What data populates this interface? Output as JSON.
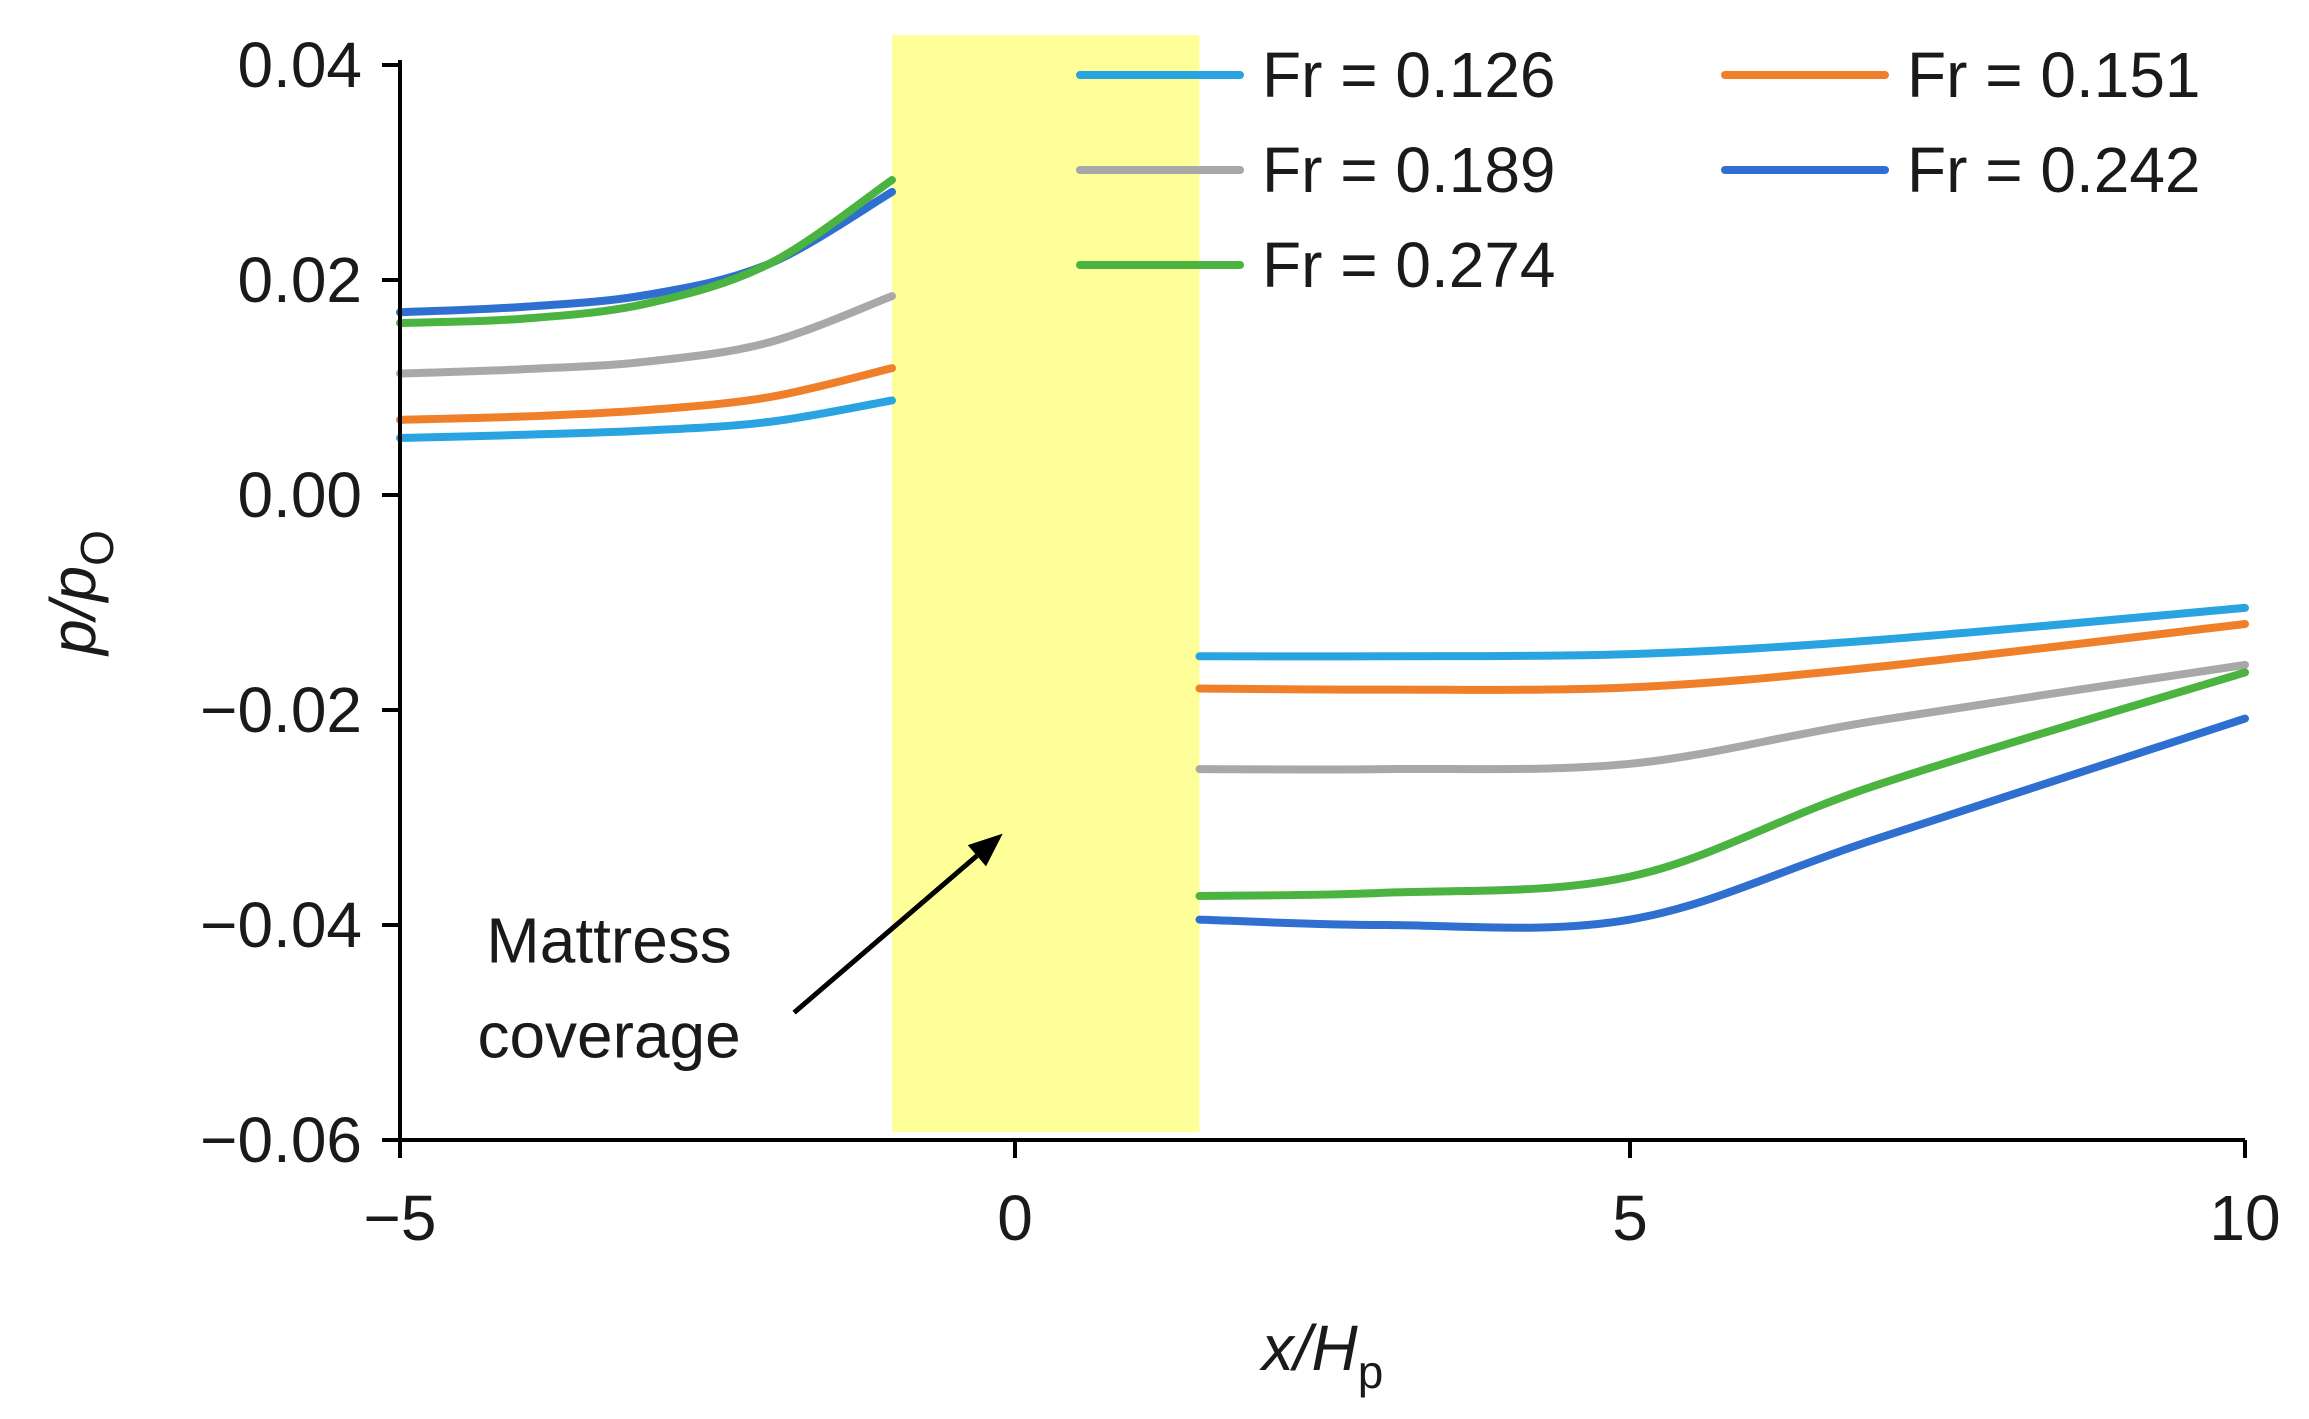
{
  "chart_data": {
    "type": "line",
    "title": "",
    "xlabel": {
      "main": "x/H",
      "sub": "p"
    },
    "ylabel": {
      "main": "p/p",
      "sub": "O"
    },
    "xlim": [
      -5,
      10
    ],
    "ylim": [
      -0.06,
      0.04
    ],
    "xticks": [
      -5,
      0,
      5,
      10
    ],
    "xtick_labels": [
      "−5",
      "0",
      "5",
      "10"
    ],
    "yticks": [
      0.04,
      0.02,
      0.0,
      -0.02,
      -0.04,
      -0.06
    ],
    "ytick_labels": [
      "0.04",
      "0.02",
      "0.00",
      "−0.02",
      "−0.04",
      "−0.06"
    ],
    "grid": false,
    "legend_position": "top-right",
    "shaded_region": {
      "x_from": -1.0,
      "x_to": 1.5,
      "color": "#ffff99"
    },
    "annotation": {
      "lines": [
        "Mattress",
        "coverage"
      ],
      "text_at": [
        -3.3,
        -0.0435
      ],
      "arrow_to": [
        -0.1,
        -0.0315
      ]
    },
    "series": [
      {
        "name": "Fr = 0.126",
        "color": "#2aa4e0",
        "upstream": [
          [
            -5,
            0.0053
          ],
          [
            -4,
            0.0056
          ],
          [
            -3,
            0.006
          ],
          [
            -2,
            0.0068
          ],
          [
            -1,
            0.0088
          ]
        ],
        "downstream": [
          [
            1.5,
            -0.015
          ],
          [
            3,
            -0.015
          ],
          [
            5,
            -0.0148
          ],
          [
            7,
            -0.0135
          ],
          [
            10,
            -0.0105
          ]
        ]
      },
      {
        "name": "Fr = 0.151",
        "color": "#f07f2a",
        "upstream": [
          [
            -5,
            0.007
          ],
          [
            -4,
            0.0073
          ],
          [
            -3,
            0.0079
          ],
          [
            -2,
            0.0091
          ],
          [
            -1,
            0.0118
          ]
        ],
        "downstream": [
          [
            1.5,
            -0.018
          ],
          [
            3,
            -0.0181
          ],
          [
            5,
            -0.0179
          ],
          [
            7,
            -0.016
          ],
          [
            10,
            -0.012
          ]
        ]
      },
      {
        "name": "Fr = 0.189",
        "color": "#a8a8a8",
        "upstream": [
          [
            -5,
            0.0113
          ],
          [
            -4,
            0.0117
          ],
          [
            -3,
            0.0124
          ],
          [
            -2,
            0.0142
          ],
          [
            -1,
            0.0185
          ]
        ],
        "downstream": [
          [
            1.5,
            -0.0255
          ],
          [
            3,
            -0.0255
          ],
          [
            5,
            -0.025
          ],
          [
            7,
            -0.021
          ],
          [
            10,
            -0.0158
          ]
        ]
      },
      {
        "name": "Fr = 0.242",
        "color": "#2e6fd0",
        "upstream": [
          [
            -5,
            0.017
          ],
          [
            -4,
            0.0175
          ],
          [
            -3,
            0.0186
          ],
          [
            -2,
            0.0215
          ],
          [
            -1,
            0.0282
          ]
        ],
        "downstream": [
          [
            1.5,
            -0.0395
          ],
          [
            3,
            -0.04
          ],
          [
            5,
            -0.0395
          ],
          [
            7,
            -0.032
          ],
          [
            10,
            -0.0208
          ]
        ]
      },
      {
        "name": "Fr = 0.274",
        "color": "#4bb33f",
        "upstream": [
          [
            -5,
            0.016
          ],
          [
            -4,
            0.0164
          ],
          [
            -3,
            0.0178
          ],
          [
            -2,
            0.0215
          ],
          [
            -1,
            0.0293
          ]
        ],
        "downstream": [
          [
            1.5,
            -0.0373
          ],
          [
            3,
            -0.037
          ],
          [
            5,
            -0.0355
          ],
          [
            7,
            -0.027
          ],
          [
            10,
            -0.0165
          ]
        ]
      }
    ]
  }
}
